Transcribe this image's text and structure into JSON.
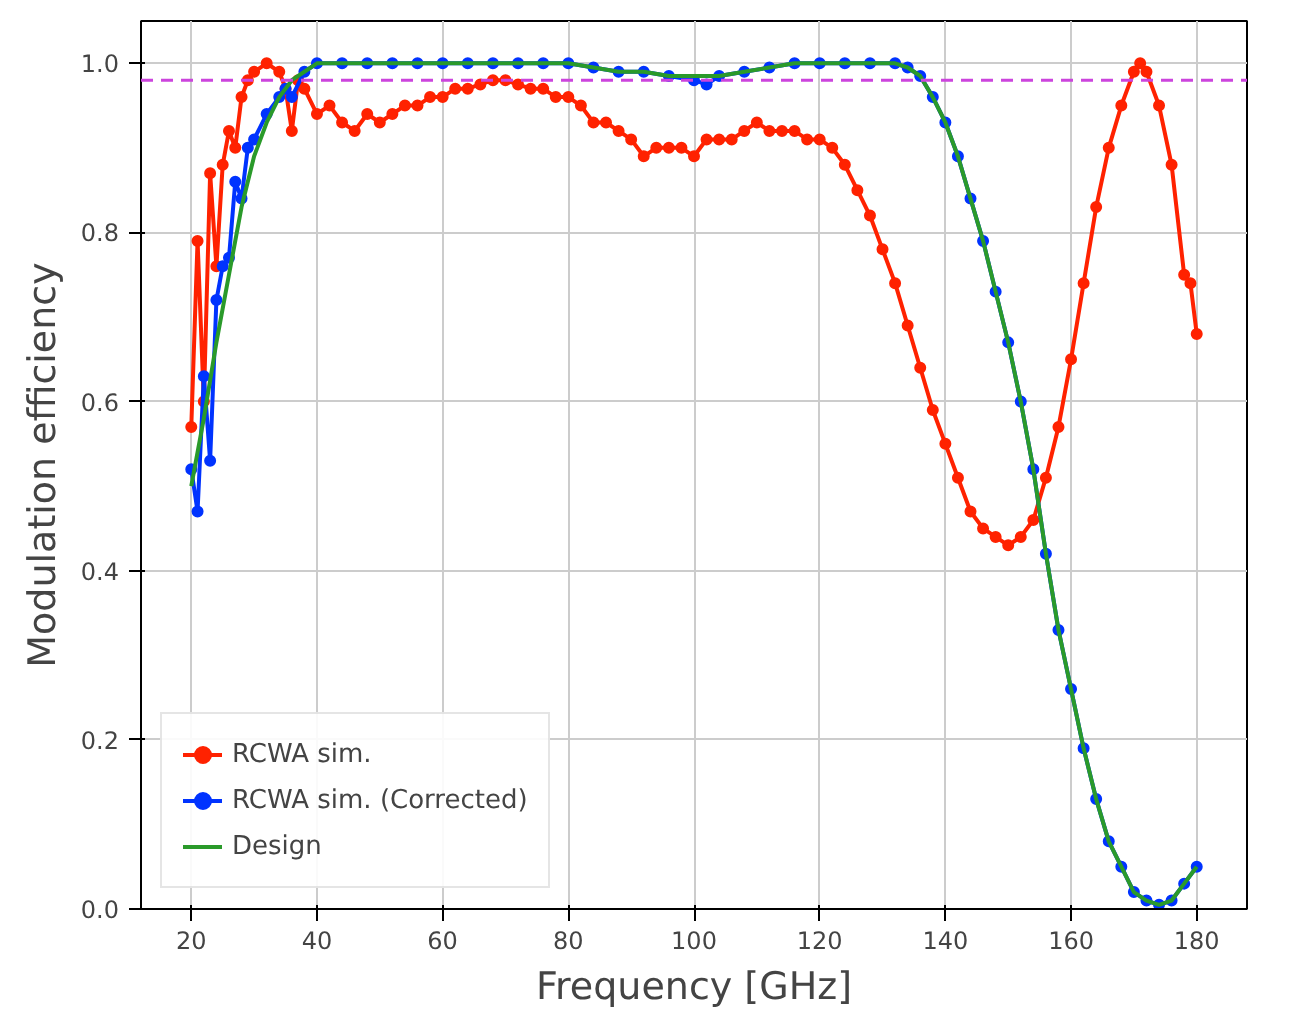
{
  "chart_data": {
    "type": "line",
    "xlabel": "Frequency [GHz]",
    "ylabel": "Modulation efficiency",
    "xlim": [
      12,
      188
    ],
    "ylim": [
      0,
      1.05
    ],
    "xticks": [
      20,
      40,
      60,
      80,
      100,
      120,
      140,
      160,
      180
    ],
    "yticks": [
      {
        "value": 0,
        "label": "0.0"
      },
      {
        "value": 0.2,
        "label": "0.2"
      },
      {
        "value": 0.4,
        "label": "0.4"
      },
      {
        "value": 0.6,
        "label": "0.6"
      },
      {
        "value": 0.8,
        "label": "0.8"
      },
      {
        "value": 1,
        "label": "1.0"
      }
    ],
    "grid": true,
    "legend": "bottom left",
    "line_style": "solid",
    "ref_lines": [
      {
        "axis": "y",
        "value": 0.98,
        "label": null,
        "color": "#cc44dd",
        "line_style": "dashed"
      }
    ],
    "series": [
      {
        "name": "RCWA sim.",
        "color": "#ff2200",
        "marker": "circle",
        "x": [
          20,
          21,
          22,
          23,
          24,
          25,
          26,
          27,
          28,
          29,
          30,
          32,
          34,
          35,
          36,
          37,
          38,
          40,
          42,
          44,
          46,
          48,
          50,
          52,
          54,
          56,
          58,
          60,
          62,
          64,
          66,
          68,
          70,
          72,
          74,
          76,
          78,
          80,
          82,
          84,
          86,
          88,
          90,
          92,
          94,
          96,
          98,
          100,
          102,
          104,
          106,
          108,
          110,
          112,
          114,
          116,
          118,
          120,
          122,
          124,
          126,
          128,
          130,
          132,
          134,
          136,
          138,
          140,
          142,
          144,
          146,
          148,
          150,
          152,
          154,
          156,
          158,
          160,
          162,
          164,
          166,
          168,
          170,
          171,
          172,
          174,
          176,
          178,
          179,
          180
        ],
        "values": [
          0.57,
          0.79,
          0.6,
          0.87,
          0.76,
          0.88,
          0.92,
          0.9,
          0.96,
          0.98,
          0.99,
          1.0,
          0.99,
          0.97,
          0.92,
          0.98,
          0.97,
          0.94,
          0.95,
          0.93,
          0.92,
          0.94,
          0.93,
          0.94,
          0.95,
          0.95,
          0.96,
          0.96,
          0.97,
          0.97,
          0.975,
          0.98,
          0.98,
          0.975,
          0.97,
          0.97,
          0.96,
          0.96,
          0.95,
          0.93,
          0.93,
          0.92,
          0.91,
          0.89,
          0.9,
          0.9,
          0.9,
          0.89,
          0.91,
          0.91,
          0.91,
          0.92,
          0.93,
          0.92,
          0.92,
          0.92,
          0.91,
          0.91,
          0.9,
          0.88,
          0.85,
          0.82,
          0.78,
          0.74,
          0.69,
          0.64,
          0.59,
          0.55,
          0.51,
          0.47,
          0.45,
          0.44,
          0.43,
          0.44,
          0.46,
          0.51,
          0.57,
          0.65,
          0.74,
          0.83,
          0.9,
          0.95,
          0.99,
          1.0,
          0.99,
          0.95,
          0.88,
          0.75,
          0.74,
          0.68
        ]
      },
      {
        "name": "RCWA sim. (Corrected)",
        "color": "#0033ff",
        "marker": "circle",
        "x": [
          20,
          21,
          22,
          23,
          24,
          25,
          26,
          27,
          28,
          29,
          30,
          32,
          34,
          35,
          36,
          38,
          40,
          44,
          48,
          52,
          56,
          60,
          64,
          68,
          72,
          76,
          80,
          84,
          88,
          92,
          96,
          100,
          102,
          104,
          108,
          112,
          116,
          120,
          124,
          128,
          132,
          134,
          136,
          138,
          140,
          142,
          144,
          146,
          148,
          150,
          152,
          154,
          156,
          158,
          160,
          162,
          164,
          166,
          168,
          170,
          172,
          174,
          176,
          178,
          180
        ],
        "values": [
          0.52,
          0.47,
          0.63,
          0.53,
          0.72,
          0.76,
          0.77,
          0.86,
          0.84,
          0.9,
          0.91,
          0.94,
          0.96,
          0.97,
          0.96,
          0.99,
          1.0,
          1.0,
          1.0,
          1.0,
          1.0,
          1.0,
          1.0,
          1.0,
          1.0,
          1.0,
          1.0,
          0.995,
          0.99,
          0.99,
          0.985,
          0.98,
          0.975,
          0.985,
          0.99,
          0.995,
          1.0,
          1.0,
          1.0,
          1.0,
          1.0,
          0.995,
          0.985,
          0.96,
          0.93,
          0.89,
          0.84,
          0.79,
          0.73,
          0.67,
          0.6,
          0.52,
          0.42,
          0.33,
          0.26,
          0.19,
          0.13,
          0.08,
          0.05,
          0.02,
          0.01,
          0.005,
          0.01,
          0.03,
          0.05
        ]
      },
      {
        "name": "Design",
        "color": "#2a9a2a",
        "marker": "none",
        "x": [
          20,
          22,
          24,
          26,
          28,
          30,
          32,
          34,
          36,
          38,
          40,
          44,
          48,
          52,
          56,
          60,
          64,
          68,
          72,
          76,
          80,
          84,
          88,
          92,
          96,
          100,
          104,
          108,
          112,
          116,
          120,
          124,
          128,
          132,
          134,
          136,
          138,
          140,
          142,
          144,
          146,
          148,
          150,
          152,
          154,
          156,
          158,
          160,
          162,
          164,
          166,
          168,
          170,
          172,
          174,
          176,
          178,
          180
        ],
        "values": [
          0.5,
          0.58,
          0.67,
          0.75,
          0.83,
          0.89,
          0.93,
          0.96,
          0.98,
          0.99,
          1.0,
          1.0,
          1.0,
          1.0,
          1.0,
          1.0,
          1.0,
          1.0,
          1.0,
          1.0,
          1.0,
          0.995,
          0.99,
          0.99,
          0.985,
          0.985,
          0.985,
          0.99,
          0.995,
          1.0,
          1.0,
          1.0,
          1.0,
          1.0,
          0.995,
          0.985,
          0.96,
          0.93,
          0.89,
          0.84,
          0.79,
          0.73,
          0.67,
          0.6,
          0.52,
          0.42,
          0.33,
          0.26,
          0.19,
          0.13,
          0.08,
          0.05,
          0.02,
          0.01,
          0.005,
          0.01,
          0.03,
          0.05
        ]
      }
    ]
  }
}
